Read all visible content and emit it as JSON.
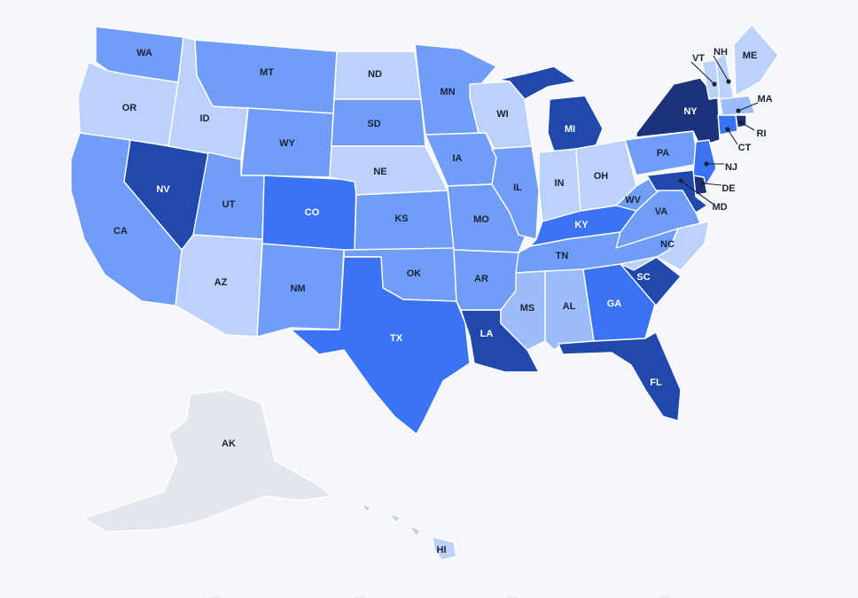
{
  "colors": {
    "lightest": "#bcd1fb",
    "light": "#9dbcfa",
    "medium": "#6f9df8",
    "strong": "#3a73f6",
    "dark": "#2048ad",
    "darkest": "#1b327a",
    "nodata": "#e3e6ec",
    "label_dark": "#1b2333",
    "label_light": "#ffffff",
    "background": "#f5f7fb"
  },
  "states": [
    {
      "abbr": "WA",
      "tone": "medium"
    },
    {
      "abbr": "OR",
      "tone": "lightest"
    },
    {
      "abbr": "CA",
      "tone": "medium"
    },
    {
      "abbr": "NV",
      "tone": "dark"
    },
    {
      "abbr": "ID",
      "tone": "lightest"
    },
    {
      "abbr": "MT",
      "tone": "medium"
    },
    {
      "abbr": "WY",
      "tone": "medium"
    },
    {
      "abbr": "UT",
      "tone": "medium"
    },
    {
      "abbr": "AZ",
      "tone": "lightest"
    },
    {
      "abbr": "CO",
      "tone": "strong"
    },
    {
      "abbr": "NM",
      "tone": "medium"
    },
    {
      "abbr": "ND",
      "tone": "lightest"
    },
    {
      "abbr": "SD",
      "tone": "medium"
    },
    {
      "abbr": "NE",
      "tone": "lightest"
    },
    {
      "abbr": "KS",
      "tone": "medium"
    },
    {
      "abbr": "OK",
      "tone": "medium"
    },
    {
      "abbr": "TX",
      "tone": "strong"
    },
    {
      "abbr": "MN",
      "tone": "medium"
    },
    {
      "abbr": "IA",
      "tone": "medium"
    },
    {
      "abbr": "MO",
      "tone": "medium"
    },
    {
      "abbr": "AR",
      "tone": "medium"
    },
    {
      "abbr": "LA",
      "tone": "dark"
    },
    {
      "abbr": "WI",
      "tone": "lightest"
    },
    {
      "abbr": "IL",
      "tone": "medium"
    },
    {
      "abbr": "MI",
      "tone": "dark"
    },
    {
      "abbr": "IN",
      "tone": "lightest"
    },
    {
      "abbr": "OH",
      "tone": "lightest"
    },
    {
      "abbr": "KY",
      "tone": "strong"
    },
    {
      "abbr": "TN",
      "tone": "medium"
    },
    {
      "abbr": "MS",
      "tone": "light"
    },
    {
      "abbr": "AL",
      "tone": "light"
    },
    {
      "abbr": "GA",
      "tone": "strong"
    },
    {
      "abbr": "FL",
      "tone": "dark"
    },
    {
      "abbr": "SC",
      "tone": "dark"
    },
    {
      "abbr": "NC",
      "tone": "lightest"
    },
    {
      "abbr": "VA",
      "tone": "medium"
    },
    {
      "abbr": "WV",
      "tone": "medium"
    },
    {
      "abbr": "PA",
      "tone": "medium"
    },
    {
      "abbr": "NY",
      "tone": "darkest"
    },
    {
      "abbr": "VT",
      "tone": "lightest"
    },
    {
      "abbr": "NH",
      "tone": "lightest"
    },
    {
      "abbr": "ME",
      "tone": "lightest"
    },
    {
      "abbr": "MA",
      "tone": "light"
    },
    {
      "abbr": "RI",
      "tone": "darkest"
    },
    {
      "abbr": "CT",
      "tone": "strong"
    },
    {
      "abbr": "NJ",
      "tone": "strong"
    },
    {
      "abbr": "DE",
      "tone": "darkest"
    },
    {
      "abbr": "MD",
      "tone": "dark"
    },
    {
      "abbr": "AK",
      "tone": "nodata"
    },
    {
      "abbr": "HI",
      "tone": "lightest"
    }
  ]
}
